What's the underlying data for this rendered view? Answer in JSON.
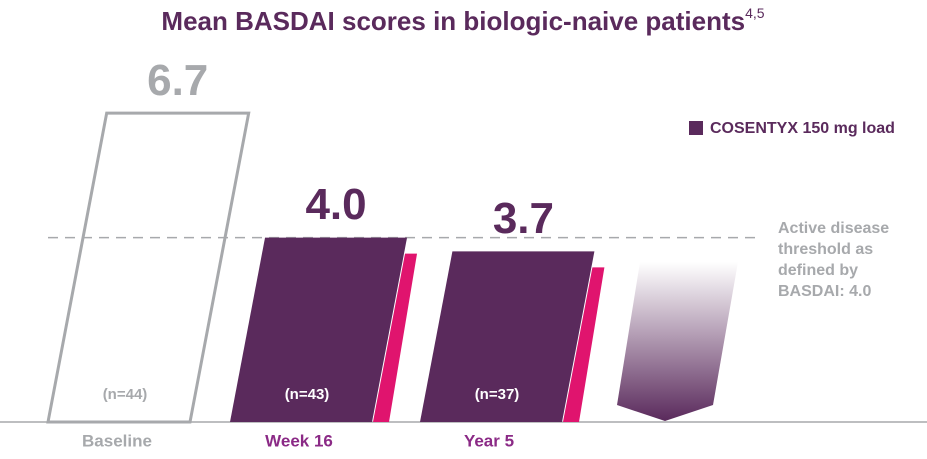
{
  "chart_data": {
    "type": "bar",
    "title": "Mean BASDAI scores in biologic-naive patients",
    "title_superscript": "4,5",
    "categories": [
      "Baseline",
      "Week 16",
      "Year 5"
    ],
    "series": [
      {
        "name": "COSENTYX 150 mg load",
        "color": "#5a2a5c",
        "values": [
          6.7,
          4.0,
          3.7
        ],
        "value_labels": [
          "6.7",
          "4.0",
          "3.7"
        ]
      }
    ],
    "sample_sizes": [
      "(n=44)",
      "(n=43)",
      "(n=37)"
    ],
    "baseline_color": "#a7a9ac",
    "accent_color": "#e0146e",
    "threshold": 4.0,
    "threshold_label": [
      "Active disease",
      "threshold as",
      "defined by",
      "BASDAI: 4.0"
    ],
    "ylim": [
      0,
      9
    ],
    "legend_position": "top-right"
  }
}
